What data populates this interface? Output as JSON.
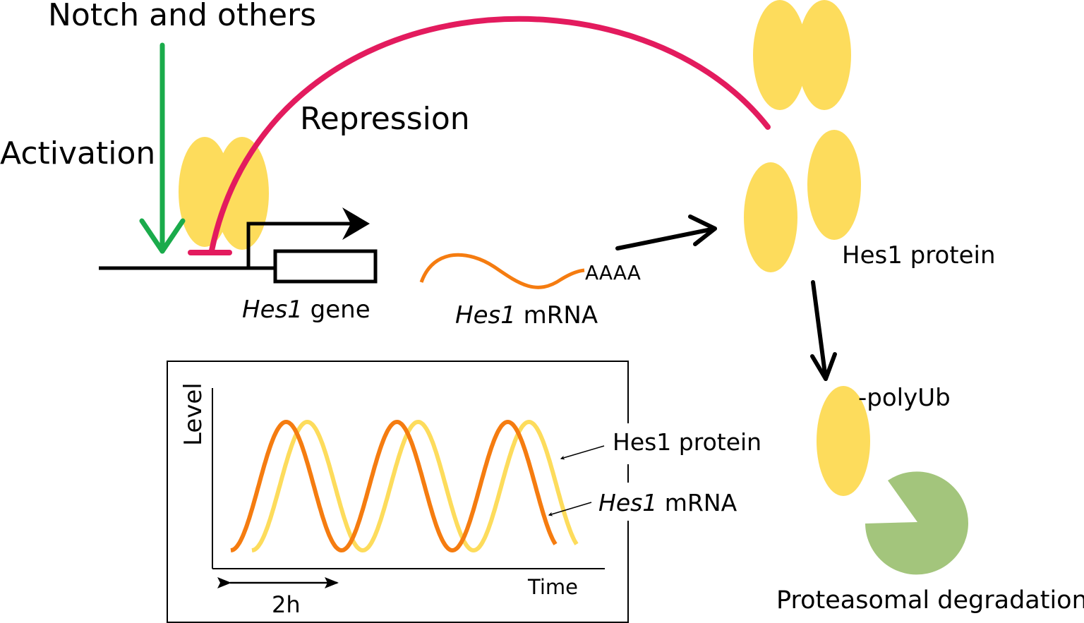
{
  "colors": {
    "activation": "#1aab4b",
    "repression": "#e31b5e",
    "protein": "#fddc5c",
    "mrna": "#f57c10",
    "proteasome": "#a3c57c"
  },
  "labels": {
    "notch": "Notch and others",
    "activation": "Activation",
    "repression": "Repression",
    "gene_italic": "Hes1",
    "gene_rest": " gene",
    "mrna_italic": "Hes1",
    "mrna_rest": " mRNA",
    "polya": "AAAA",
    "protein": "Hes1 protein",
    "polyub": "-polyUb",
    "degradation": "Proteasomal degradation"
  },
  "inset": {
    "ylabel": "Level",
    "xlabel": "Time",
    "period_label": "2h",
    "protein_label": "Hes1 protein",
    "mrna_label_italic": "Hes1",
    "mrna_label_rest": " mRNA",
    "series": [
      {
        "name": "Hes1 mRNA",
        "color": "#f57c10",
        "cycles": 3
      },
      {
        "name": "Hes1 protein",
        "color": "#fddc5c",
        "cycles": 3
      }
    ]
  }
}
